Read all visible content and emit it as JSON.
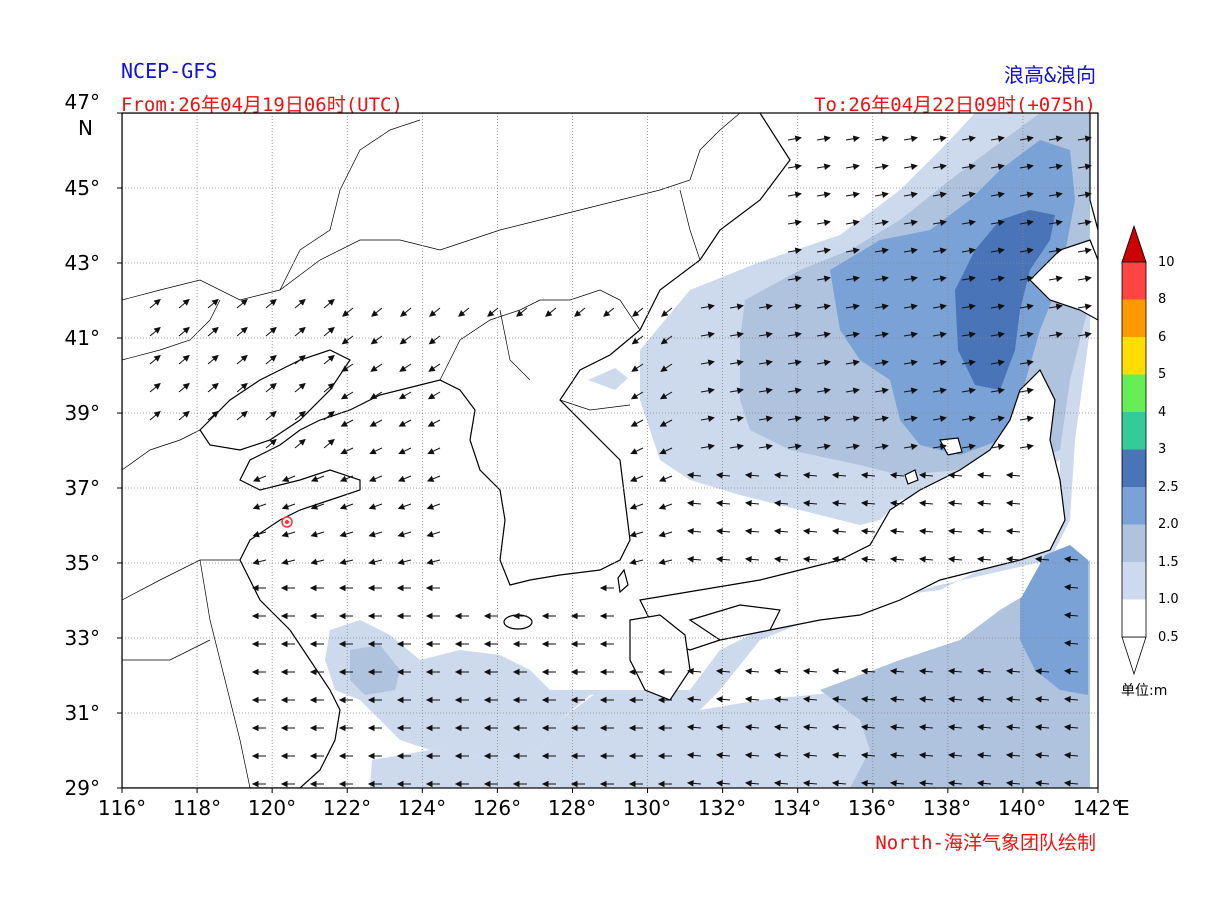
{
  "header": {
    "model": "NCEP-GFS",
    "product": "浪高&浪向",
    "from": "From:26年04月19日06时(UTC)",
    "to": "To:26年04月22日09时(+075h)",
    "credit": "North-海洋气象团队绘制"
  },
  "axes": {
    "lat_ticks": [
      "47°",
      "45°",
      "43°",
      "41°",
      "39°",
      "37°",
      "35°",
      "33°",
      "31°",
      "29°"
    ],
    "lat_unit": "N",
    "lon_ticks": [
      "116°",
      "118°",
      "120°",
      "122°",
      "124°",
      "126°",
      "128°",
      "130°",
      "132°",
      "134°",
      "136°",
      "138°",
      "140°",
      "142°"
    ],
    "lon_unit": "E"
  },
  "colorbar": {
    "levels": [
      "10",
      "8",
      "6",
      "5",
      "4",
      "3",
      "2.5",
      "2.0",
      "1.5",
      "1.0",
      "0.5"
    ],
    "colors": [
      "#cc0000",
      "#ff4444",
      "#ff9900",
      "#ffdd00",
      "#66ee55",
      "#33cc99",
      "#4a74b8",
      "#7ba2d6",
      "#afc2de",
      "#cdd9ec",
      "#ffffff"
    ],
    "unit_label": "单位:m"
  },
  "colors": {
    "title_blue": "#1010e0",
    "title_red": "#ee1111",
    "marker": "#ff3333"
  }
}
